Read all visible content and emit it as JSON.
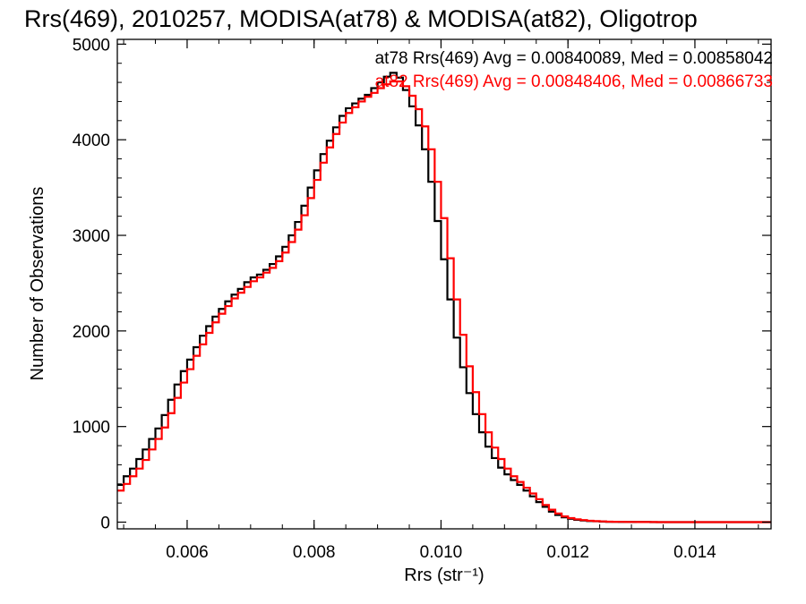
{
  "chart_data": {
    "type": "line",
    "style": "histogram-step",
    "title": "Rrs(469), 2010257, MODISA(at78) & MODISA(at82), Oligotrop",
    "xlabel": "Rrs (str⁻¹)",
    "ylabel": "Number of Observations",
    "xlim": [
      0.0049,
      0.0152
    ],
    "ylim": [
      -70,
      5050
    ],
    "xticks": [
      0.006,
      0.008,
      0.01,
      0.012,
      0.014
    ],
    "xtick_labels": [
      "0.006",
      "0.008",
      "0.010",
      "0.012",
      "0.014"
    ],
    "yticks": [
      0,
      1000,
      2000,
      3000,
      4000,
      5000
    ],
    "ytick_labels": [
      "0",
      "1000",
      "2000",
      "3000",
      "4000",
      "5000"
    ],
    "grid": false,
    "legend_position": "top-right",
    "legend": [
      {
        "text": "at78 Rrs(469) Avg = 0.00840089, Med = 0.00858042",
        "color": "#000000"
      },
      {
        "text": "at82 Rrs(469) Avg = 0.00848406, Med = 0.00866733",
        "color": "#ff0000"
      }
    ],
    "x": [
      0.0049,
      0.005,
      0.0051,
      0.0052,
      0.0053,
      0.0054,
      0.0055,
      0.0056,
      0.0057,
      0.0058,
      0.0059,
      0.006,
      0.0061,
      0.0062,
      0.0063,
      0.0064,
      0.0065,
      0.0066,
      0.0067,
      0.0068,
      0.0069,
      0.007,
      0.0071,
      0.0072,
      0.0073,
      0.0074,
      0.0075,
      0.0076,
      0.0077,
      0.0078,
      0.0079,
      0.008,
      0.0081,
      0.0082,
      0.0083,
      0.0084,
      0.0085,
      0.0086,
      0.0087,
      0.0088,
      0.0089,
      0.009,
      0.0091,
      0.0092,
      0.0093,
      0.0094,
      0.0095,
      0.0096,
      0.0097,
      0.0098,
      0.0099,
      0.01,
      0.0101,
      0.0102,
      0.0103,
      0.0104,
      0.0105,
      0.0106,
      0.0107,
      0.0108,
      0.0109,
      0.011,
      0.0111,
      0.0112,
      0.0113,
      0.0114,
      0.0115,
      0.0116,
      0.0117,
      0.0118,
      0.0119,
      0.012,
      0.0121,
      0.0122,
      0.0123,
      0.0124,
      0.0125,
      0.0126,
      0.0127,
      0.0128,
      0.0129,
      0.013,
      0.0131,
      0.0132,
      0.0133,
      0.0134,
      0.0135,
      0.0136,
      0.0137,
      0.0138,
      0.0139,
      0.014,
      0.0141,
      0.0142,
      0.0143,
      0.0144,
      0.0145,
      0.0146,
      0.0147,
      0.0148,
      0.0149,
      0.015,
      0.0151
    ],
    "series": [
      {
        "name": "at78",
        "color": "#000000",
        "values": [
          390,
          480,
          560,
          660,
          760,
          870,
          980,
          1120,
          1280,
          1440,
          1580,
          1700,
          1830,
          1950,
          2050,
          2150,
          2230,
          2310,
          2380,
          2440,
          2510,
          2560,
          2590,
          2640,
          2700,
          2780,
          2880,
          3000,
          3140,
          3310,
          3500,
          3680,
          3850,
          3990,
          4130,
          4250,
          4330,
          4380,
          4430,
          4470,
          4540,
          4600,
          4660,
          4700,
          4650,
          4520,
          4350,
          4150,
          3900,
          3560,
          3150,
          2750,
          2330,
          1930,
          1620,
          1350,
          1130,
          940,
          790,
          670,
          570,
          500,
          440,
          390,
          330,
          270,
          210,
          160,
          110,
          75,
          50,
          35,
          25,
          18,
          12,
          9,
          6,
          4,
          3,
          2,
          2,
          1,
          1,
          1,
          0,
          0,
          0,
          0,
          0,
          0,
          0,
          0,
          0,
          0,
          0,
          0,
          0,
          0,
          0,
          0,
          0,
          0,
          0
        ]
      },
      {
        "name": "at82",
        "color": "#ff0000",
        "values": [
          330,
          400,
          480,
          560,
          650,
          760,
          870,
          990,
          1140,
          1300,
          1460,
          1600,
          1740,
          1860,
          1980,
          2090,
          2180,
          2260,
          2340,
          2400,
          2460,
          2520,
          2560,
          2610,
          2660,
          2730,
          2820,
          2930,
          3060,
          3210,
          3390,
          3580,
          3760,
          3920,
          4060,
          4180,
          4280,
          4340,
          4400,
          4450,
          4490,
          4540,
          4580,
          4610,
          4610,
          4560,
          4460,
          4320,
          4140,
          3900,
          3560,
          3180,
          2760,
          2330,
          1960,
          1630,
          1360,
          1130,
          940,
          780,
          660,
          560,
          480,
          420,
          360,
          300,
          240,
          180,
          130,
          90,
          60,
          42,
          30,
          22,
          15,
          11,
          8,
          5,
          4,
          3,
          2,
          2,
          1,
          1,
          1,
          0,
          0,
          0,
          0,
          0,
          0,
          0,
          0,
          0,
          0,
          0,
          0,
          0,
          0,
          0,
          0,
          0,
          0
        ]
      }
    ]
  }
}
